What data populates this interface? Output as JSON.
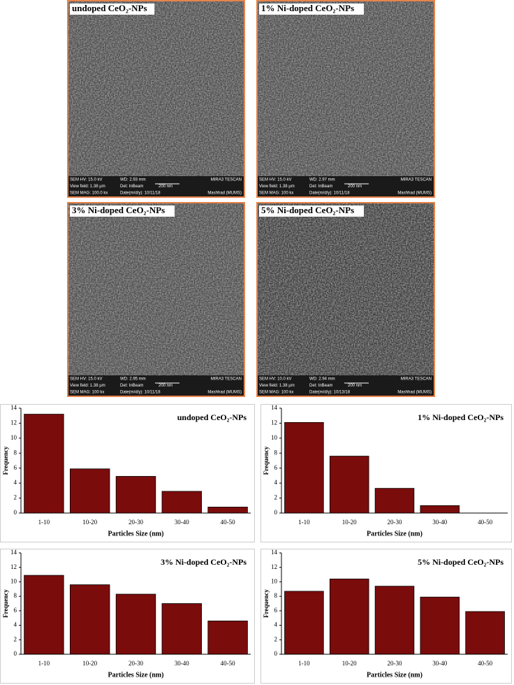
{
  "sem_images": [
    {
      "label": "undoped CeO₂-NPs",
      "info": [
        [
          "SEM HV: 15.0 kV",
          "WD: 2.93 mm",
          "MIRA3 TESCAN"
        ],
        [
          "View field: 1.38 µm",
          "Det: InBeam",
          "200 nm"
        ],
        [
          "SEM MAG: 100.0 kx",
          "Date(m/d/y): 10/11/18",
          "Mashhad (MUMS)"
        ]
      ]
    },
    {
      "label": "1% Ni-doped CeO₂-NPs",
      "info": [
        [
          "SEM HV: 15.0 kV",
          "WD: 2.97 mm",
          "MIRA3 TESCAN"
        ],
        [
          "View field: 1.38 µm",
          "Det: InBeam",
          "200 nm"
        ],
        [
          "SEM MAG: 100 kx",
          "Date(m/d/y): 10/11/18",
          "Mashhad (MUMS)"
        ]
      ]
    },
    {
      "label": "3% Ni-doped CeO₂-NPs",
      "info": [
        [
          "SEM HV: 15.0 kV",
          "WD: 2.95 mm",
          "MIRA3 TESCAN"
        ],
        [
          "View field: 1.38 µm",
          "Det: InBeam",
          "200 nm"
        ],
        [
          "SEM MAG: 100 kx",
          "Date(m/d/y): 10/11/18",
          "Mashhad (MUMS)"
        ]
      ]
    },
    {
      "label": "5% Ni-doped CeO₂-NPs",
      "info": [
        [
          "SEM HV: 10.0 kV",
          "WD: 2.94 mm",
          "MIRA3 TESCAN"
        ],
        [
          "View field: 1.38 µm",
          "Det: InBeam",
          "200 nm"
        ],
        [
          "SEM MAG: 100 kx",
          "Date(m/d/y): 10/13/18",
          "Mashhad (MUMS)"
        ]
      ]
    }
  ],
  "chart_data": [
    {
      "type": "bar",
      "title": "undoped CeO₂-NPs",
      "x_label": "Particles Size (nm)",
      "y_label": "Frequency",
      "categories": [
        "1-10",
        "10-20",
        "20-30",
        "30-40",
        "40-50"
      ],
      "values": [
        13.2,
        5.9,
        4.9,
        2.9,
        0.8
      ],
      "color": "#7b0c0c",
      "ylim": [
        0,
        14
      ],
      "yticks": [
        0,
        2,
        4,
        6,
        8,
        10,
        12,
        14
      ]
    },
    {
      "type": "bar",
      "title": "1% Ni-doped CeO₂-NPs",
      "x_label": "Particles Size (nm)",
      "y_label": "Frequency",
      "categories": [
        "1-10",
        "10-20",
        "20-30",
        "30-40",
        "40-50"
      ],
      "values": [
        12.1,
        7.6,
        3.3,
        1.0,
        0
      ],
      "color": "#7b0c0c",
      "ylim": [
        0,
        14
      ],
      "yticks": [
        0,
        2,
        4,
        6,
        8,
        10,
        12,
        14
      ]
    },
    {
      "type": "bar",
      "title": "3% Ni-doped CeO₂-NPs",
      "x_label": "Particles Size (nm)",
      "y_label": "Frequency",
      "categories": [
        "1-10",
        "10-20",
        "20-30",
        "30-40",
        "40-50"
      ],
      "values": [
        10.9,
        9.6,
        8.3,
        7.0,
        4.6
      ],
      "color": "#7b0c0c",
      "ylim": [
        0,
        14
      ],
      "yticks": [
        0,
        2,
        4,
        6,
        8,
        10,
        12,
        14
      ]
    },
    {
      "type": "bar",
      "title": "5% Ni-doped CeO₂-NPs",
      "x_label": "Particles Size (nm)",
      "y_label": "Frequency",
      "categories": [
        "1-10",
        "10-20",
        "20-30",
        "30-40",
        "40-50"
      ],
      "values": [
        8.7,
        10.4,
        9.4,
        7.9,
        5.9
      ],
      "color": "#7b0c0c",
      "ylim": [
        0,
        14
      ],
      "yticks": [
        0,
        2,
        4,
        6,
        8,
        10,
        12,
        14
      ]
    }
  ]
}
